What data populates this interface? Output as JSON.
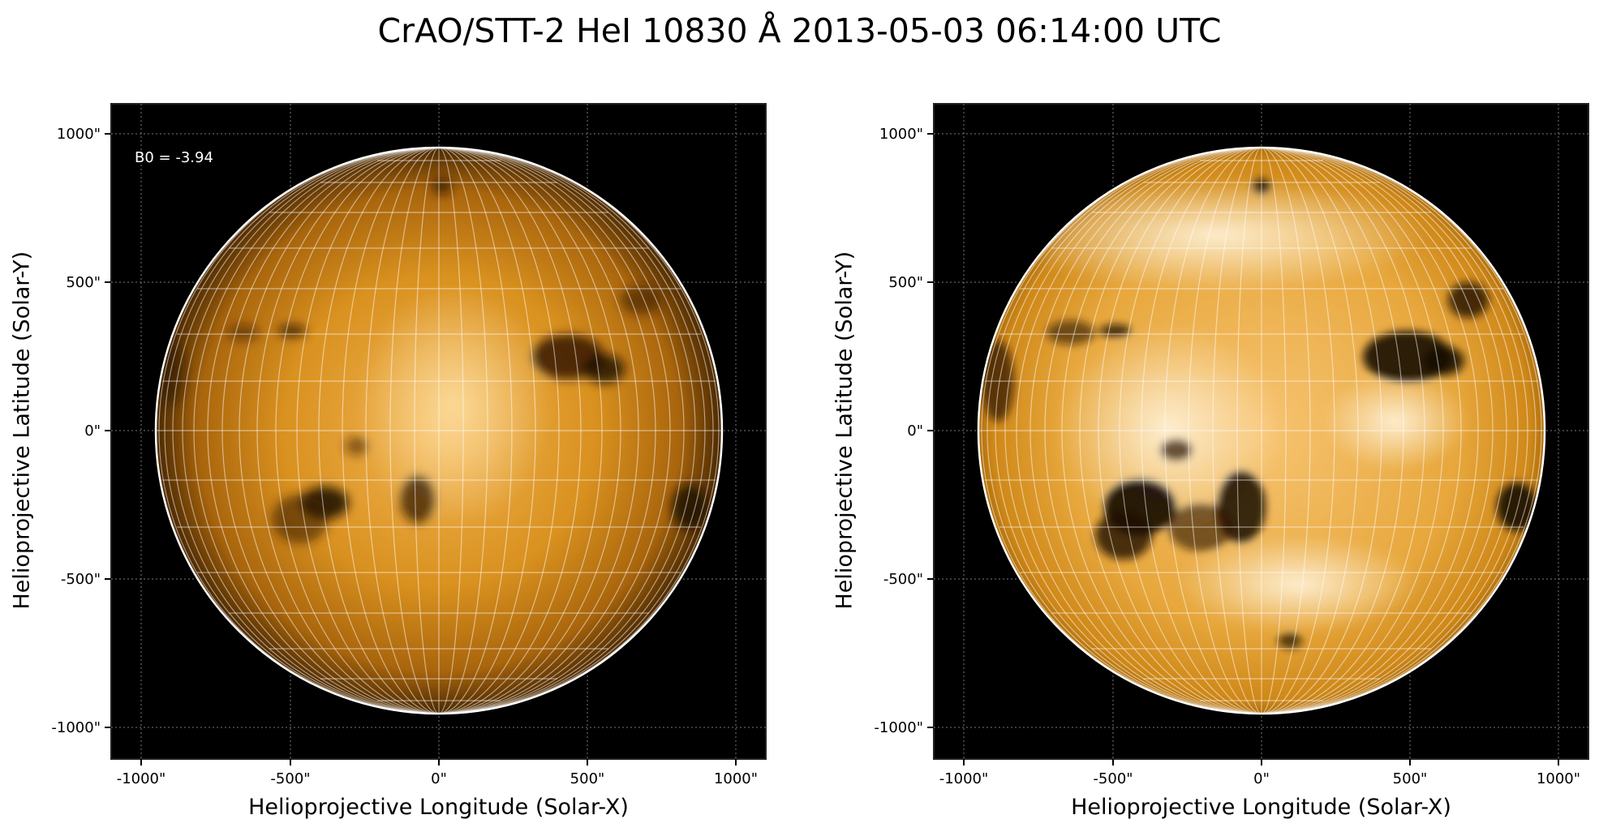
{
  "title": "CrAO/STT-2 HeI 10830 Å 2013-05-03 06:14:00 UTC",
  "colors": {
    "disk_dark": "#1a0c00",
    "disk_mid": "#d98e25",
    "disk_bright": "#ffe9b8",
    "background": "#000000"
  },
  "panels": [
    {
      "id": "left",
      "annotation": "B0 = -3.94",
      "xlabel": "Helioprojective Longitude (Solar-X)",
      "ylabel": "Helioprojective Latitude (Solar-Y)",
      "xticks": [
        "-1000\"",
        "-500\"",
        "0\"",
        "500\"",
        "1000\""
      ],
      "yticks": [
        "1000\"",
        "500\"",
        "0\"",
        "-500\"",
        "-1000\""
      ],
      "contrast": "normal"
    },
    {
      "id": "right",
      "annotation": "",
      "xlabel": "Helioprojective Longitude (Solar-X)",
      "ylabel": "Helioprojective Latitude (Solar-Y)",
      "xticks": [
        "-1000\"",
        "-500\"",
        "0\"",
        "500\"",
        "1000\""
      ],
      "yticks": [
        "1000\"",
        "500\"",
        "0\"",
        "-500\"",
        "-1000\""
      ],
      "contrast": "enhanced"
    }
  ]
}
